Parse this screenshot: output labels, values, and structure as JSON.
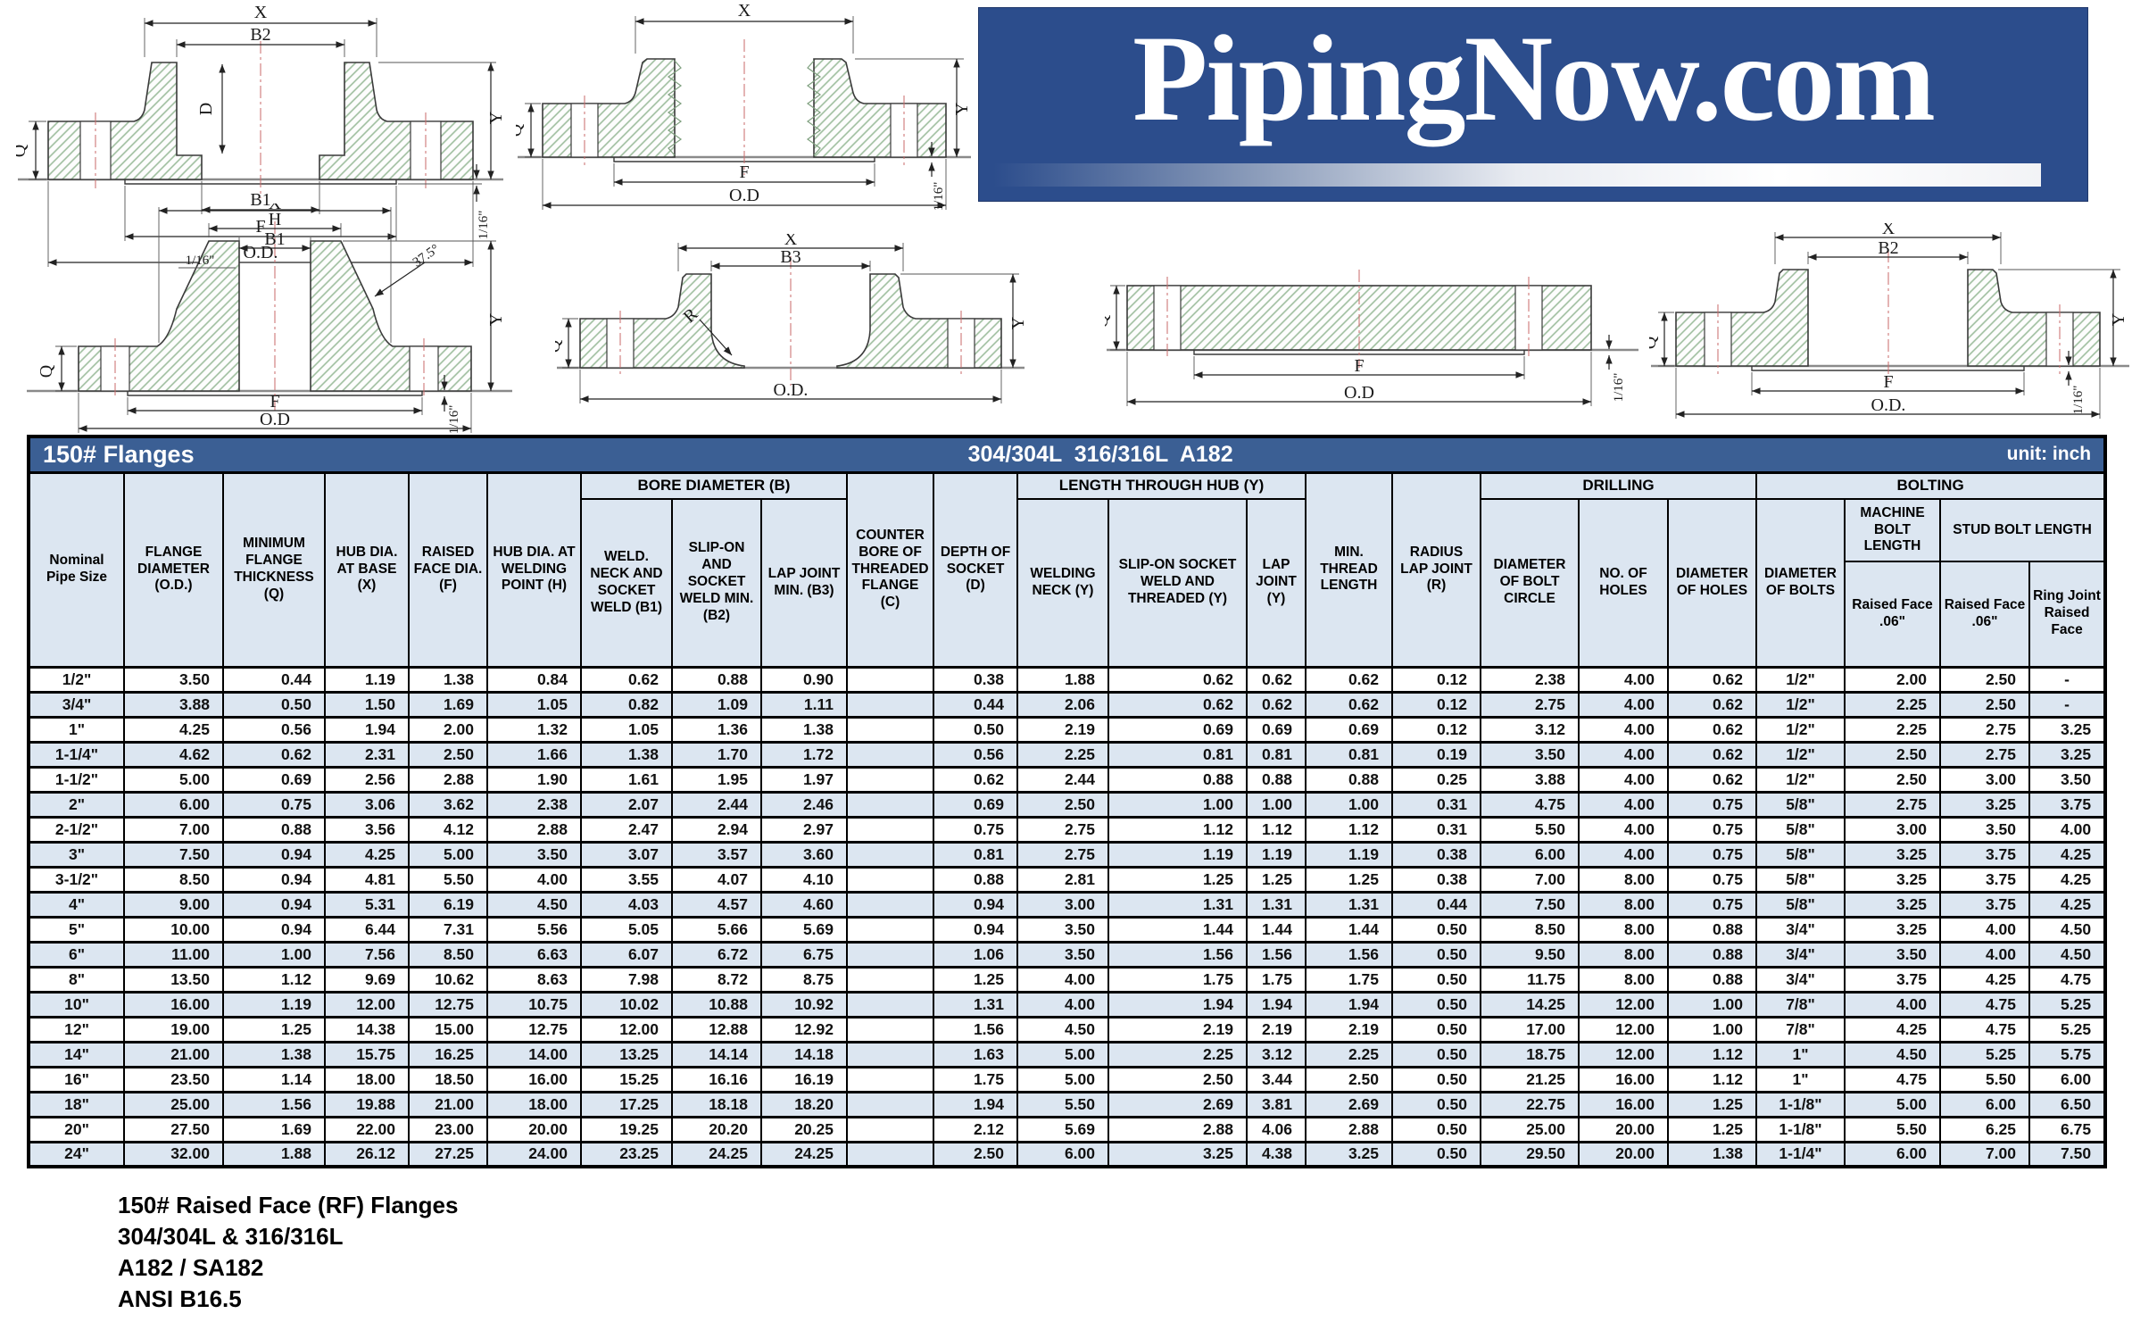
{
  "logo": {
    "text": "PipingNow.com"
  },
  "table": {
    "title_left": "150# Flanges",
    "title_center": "304/304L  316/316L  A182",
    "title_right": "unit: inch",
    "groups": {
      "bore": "BORE DIAMETER (B)",
      "length": "LENGTH THROUGH HUB (Y)",
      "drilling": "DRILLING",
      "bolting": "BOLTING",
      "machine_bolt": "MACHINE BOLT LENGTH",
      "stud_bolt": "STUD BOLT LENGTH"
    },
    "columns": [
      "Nominal Pipe Size",
      "FLANGE DIAMETER (O.D.)",
      "MINIMUM FLANGE THICKNESS (Q)",
      "HUB DIA. AT BASE (X)",
      "RAISED FACE DIA. (F)",
      "HUB DIA. AT WELDING POINT (H)",
      "WELD. NECK AND SOCKET WELD (B1)",
      "SLIP-ON AND SOCKET WELD MIN. (B2)",
      "LAP JOINT MIN. (B3)",
      "COUNTER BORE OF THREADED FLANGE (C)",
      "DEPTH OF SOCKET (D)",
      "WELDING NECK (Y)",
      "SLIP-ON SOCKET WELD AND THREADED (Y)",
      "LAP JOINT (Y)",
      "MIN. THREAD LENGTH",
      "RADIUS LAP JOINT (R)",
      "DIAMETER OF BOLT CIRCLE",
      "NO. OF HOLES",
      "DIAMETER OF HOLES",
      "DIAMETER OF BOLTS",
      "Raised Face .06\"",
      "Raised Face .06\"",
      "Ring Joint Raised Face"
    ],
    "rows": [
      [
        "1/2\"",
        "3.50",
        "0.44",
        "1.19",
        "1.38",
        "0.84",
        "0.62",
        "0.88",
        "0.90",
        "",
        "0.38",
        "1.88",
        "0.62",
        "0.62",
        "0.62",
        "0.12",
        "2.38",
        "4.00",
        "0.62",
        "1/2\"",
        "2.00",
        "2.50",
        "-"
      ],
      [
        "3/4\"",
        "3.88",
        "0.50",
        "1.50",
        "1.69",
        "1.05",
        "0.82",
        "1.09",
        "1.11",
        "",
        "0.44",
        "2.06",
        "0.62",
        "0.62",
        "0.62",
        "0.12",
        "2.75",
        "4.00",
        "0.62",
        "1/2\"",
        "2.25",
        "2.50",
        "-"
      ],
      [
        "1\"",
        "4.25",
        "0.56",
        "1.94",
        "2.00",
        "1.32",
        "1.05",
        "1.36",
        "1.38",
        "",
        "0.50",
        "2.19",
        "0.69",
        "0.69",
        "0.69",
        "0.12",
        "3.12",
        "4.00",
        "0.62",
        "1/2\"",
        "2.25",
        "2.75",
        "3.25"
      ],
      [
        "1-1/4\"",
        "4.62",
        "0.62",
        "2.31",
        "2.50",
        "1.66",
        "1.38",
        "1.70",
        "1.72",
        "",
        "0.56",
        "2.25",
        "0.81",
        "0.81",
        "0.81",
        "0.19",
        "3.50",
        "4.00",
        "0.62",
        "1/2\"",
        "2.50",
        "2.75",
        "3.25"
      ],
      [
        "1-1/2\"",
        "5.00",
        "0.69",
        "2.56",
        "2.88",
        "1.90",
        "1.61",
        "1.95",
        "1.97",
        "",
        "0.62",
        "2.44",
        "0.88",
        "0.88",
        "0.88",
        "0.25",
        "3.88",
        "4.00",
        "0.62",
        "1/2\"",
        "2.50",
        "3.00",
        "3.50"
      ],
      [
        "2\"",
        "6.00",
        "0.75",
        "3.06",
        "3.62",
        "2.38",
        "2.07",
        "2.44",
        "2.46",
        "",
        "0.69",
        "2.50",
        "1.00",
        "1.00",
        "1.00",
        "0.31",
        "4.75",
        "4.00",
        "0.75",
        "5/8\"",
        "2.75",
        "3.25",
        "3.75"
      ],
      [
        "2-1/2\"",
        "7.00",
        "0.88",
        "3.56",
        "4.12",
        "2.88",
        "2.47",
        "2.94",
        "2.97",
        "",
        "0.75",
        "2.75",
        "1.12",
        "1.12",
        "1.12",
        "0.31",
        "5.50",
        "4.00",
        "0.75",
        "5/8\"",
        "3.00",
        "3.50",
        "4.00"
      ],
      [
        "3\"",
        "7.50",
        "0.94",
        "4.25",
        "5.00",
        "3.50",
        "3.07",
        "3.57",
        "3.60",
        "",
        "0.81",
        "2.75",
        "1.19",
        "1.19",
        "1.19",
        "0.38",
        "6.00",
        "4.00",
        "0.75",
        "5/8\"",
        "3.25",
        "3.75",
        "4.25"
      ],
      [
        "3-1/2\"",
        "8.50",
        "0.94",
        "4.81",
        "5.50",
        "4.00",
        "3.55",
        "4.07",
        "4.10",
        "",
        "0.88",
        "2.81",
        "1.25",
        "1.25",
        "1.25",
        "0.38",
        "7.00",
        "8.00",
        "0.75",
        "5/8\"",
        "3.25",
        "3.75",
        "4.25"
      ],
      [
        "4\"",
        "9.00",
        "0.94",
        "5.31",
        "6.19",
        "4.50",
        "4.03",
        "4.57",
        "4.60",
        "",
        "0.94",
        "3.00",
        "1.31",
        "1.31",
        "1.31",
        "0.44",
        "7.50",
        "8.00",
        "0.75",
        "5/8\"",
        "3.25",
        "3.75",
        "4.25"
      ],
      [
        "5\"",
        "10.00",
        "0.94",
        "6.44",
        "7.31",
        "5.56",
        "5.05",
        "5.66",
        "5.69",
        "",
        "0.94",
        "3.50",
        "1.44",
        "1.44",
        "1.44",
        "0.50",
        "8.50",
        "8.00",
        "0.88",
        "3/4\"",
        "3.25",
        "4.00",
        "4.50"
      ],
      [
        "6\"",
        "11.00",
        "1.00",
        "7.56",
        "8.50",
        "6.63",
        "6.07",
        "6.72",
        "6.75",
        "",
        "1.06",
        "3.50",
        "1.56",
        "1.56",
        "1.56",
        "0.50",
        "9.50",
        "8.00",
        "0.88",
        "3/4\"",
        "3.50",
        "4.00",
        "4.50"
      ],
      [
        "8\"",
        "13.50",
        "1.12",
        "9.69",
        "10.62",
        "8.63",
        "7.98",
        "8.72",
        "8.75",
        "",
        "1.25",
        "4.00",
        "1.75",
        "1.75",
        "1.75",
        "0.50",
        "11.75",
        "8.00",
        "0.88",
        "3/4\"",
        "3.75",
        "4.25",
        "4.75"
      ],
      [
        "10\"",
        "16.00",
        "1.19",
        "12.00",
        "12.75",
        "10.75",
        "10.02",
        "10.88",
        "10.92",
        "",
        "1.31",
        "4.00",
        "1.94",
        "1.94",
        "1.94",
        "0.50",
        "14.25",
        "12.00",
        "1.00",
        "7/8\"",
        "4.00",
        "4.75",
        "5.25"
      ],
      [
        "12\"",
        "19.00",
        "1.25",
        "14.38",
        "15.00",
        "12.75",
        "12.00",
        "12.88",
        "12.92",
        "",
        "1.56",
        "4.50",
        "2.19",
        "2.19",
        "2.19",
        "0.50",
        "17.00",
        "12.00",
        "1.00",
        "7/8\"",
        "4.25",
        "4.75",
        "5.25"
      ],
      [
        "14\"",
        "21.00",
        "1.38",
        "15.75",
        "16.25",
        "14.00",
        "13.25",
        "14.14",
        "14.18",
        "",
        "1.63",
        "5.00",
        "2.25",
        "3.12",
        "2.25",
        "0.50",
        "18.75",
        "12.00",
        "1.12",
        "1\"",
        "4.50",
        "5.25",
        "5.75"
      ],
      [
        "16\"",
        "23.50",
        "1.14",
        "18.00",
        "18.50",
        "16.00",
        "15.25",
        "16.16",
        "16.19",
        "",
        "1.75",
        "5.00",
        "2.50",
        "3.44",
        "2.50",
        "0.50",
        "21.25",
        "16.00",
        "1.12",
        "1\"",
        "4.75",
        "5.50",
        "6.00"
      ],
      [
        "18\"",
        "25.00",
        "1.56",
        "19.88",
        "21.00",
        "18.00",
        "17.25",
        "18.18",
        "18.20",
        "",
        "1.94",
        "5.50",
        "2.69",
        "3.81",
        "2.69",
        "0.50",
        "22.75",
        "16.00",
        "1.25",
        "1-1/8\"",
        "5.00",
        "6.00",
        "6.50"
      ],
      [
        "20\"",
        "27.50",
        "1.69",
        "22.00",
        "23.00",
        "20.00",
        "19.25",
        "20.20",
        "20.25",
        "",
        "2.12",
        "5.69",
        "2.88",
        "4.06",
        "2.88",
        "0.50",
        "25.00",
        "20.00",
        "1.25",
        "1-1/8\"",
        "5.50",
        "6.25",
        "6.75"
      ],
      [
        "24\"",
        "32.00",
        "1.88",
        "26.12",
        "27.25",
        "24.00",
        "23.25",
        "24.25",
        "24.25",
        "",
        "2.50",
        "6.00",
        "3.25",
        "4.38",
        "3.25",
        "0.50",
        "29.50",
        "20.00",
        "1.38",
        "1-1/4\"",
        "6.00",
        "7.00",
        "7.50"
      ]
    ]
  },
  "footer": {
    "lines": [
      "150# Raised Face (RF) Flanges",
      "304/304L & 316/316L",
      "A182 / SA182",
      "ANSI B16.5"
    ]
  },
  "drawings": {
    "socket_weld": {
      "x": "X",
      "b2": "B2",
      "d": "D",
      "q": "Q",
      "b1": "B1",
      "f": "F",
      "od": "O.D.",
      "y": "Y",
      "sixteenth": "1/16\""
    },
    "threaded": {
      "x": "X",
      "q": "Q",
      "f": "F",
      "od": "O.D",
      "y": "Y",
      "sixteenth": "1/16\""
    },
    "weld_neck": {
      "x": "X",
      "h": "H",
      "b1": "B1",
      "lip": "1/16\"",
      "angle": "37.5°",
      "q": "Q",
      "f": "F",
      "od": "O.D",
      "y": "Y",
      "sixteenth": "1/16\""
    },
    "lap_joint": {
      "x": "X",
      "b3": "B3",
      "q": "Q",
      "r": "R",
      "od": "O.D.",
      "y": "Y"
    },
    "blind": {
      "q": "Q",
      "f": "F",
      "od": "O.D",
      "sixteenth": "1/16\""
    },
    "slip_on": {
      "x": "X",
      "b2": "B2",
      "q": "Q",
      "f": "F",
      "od": "O.D.",
      "y": "Y",
      "sixteenth": "1/16\""
    }
  },
  "colors": {
    "title_bar": "#3b5f94",
    "logo_background": "#2c4d8c",
    "row_alternate": "#dce6f1",
    "hatch_green": "#9dbd9d"
  }
}
